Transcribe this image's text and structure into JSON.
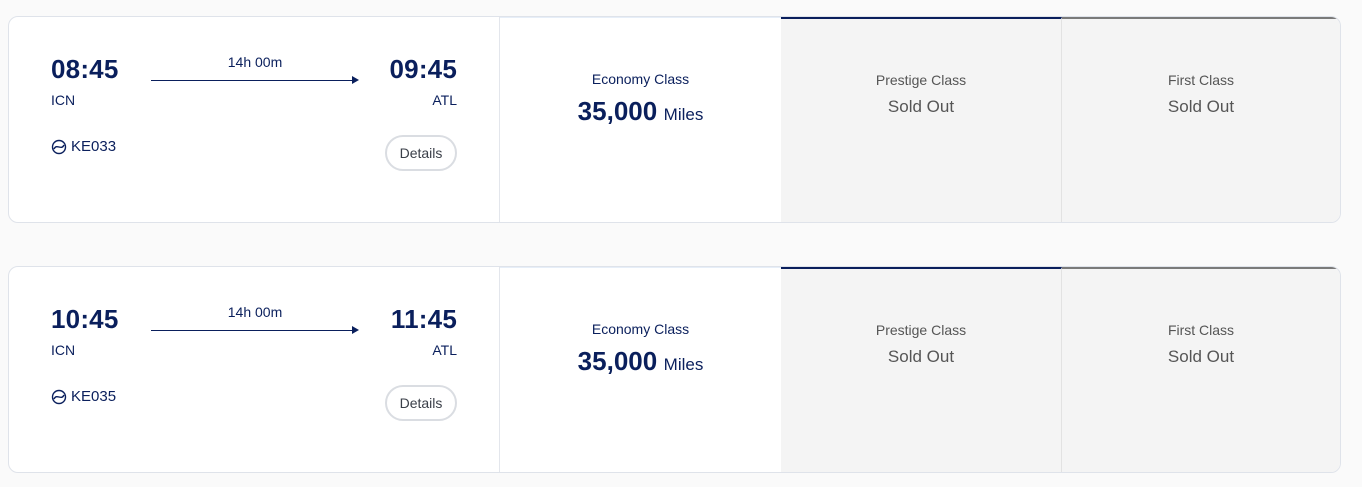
{
  "flights": [
    {
      "departure_time": "08:45",
      "departure_airport": "ICN",
      "duration": "14h 00m",
      "arrival_time": "09:45",
      "arrival_airport": "ATL",
      "flight_number": "KE033",
      "details_label": "Details",
      "fares": {
        "economy": {
          "label": "Economy Class",
          "price": "35,000",
          "unit": "Miles"
        },
        "prestige": {
          "label": "Prestige Class",
          "status": "Sold Out"
        },
        "first": {
          "label": "First Class",
          "status": "Sold Out"
        }
      }
    },
    {
      "departure_time": "10:45",
      "departure_airport": "ICN",
      "duration": "14h 00m",
      "arrival_time": "11:45",
      "arrival_airport": "ATL",
      "flight_number": "KE035",
      "details_label": "Details",
      "fares": {
        "economy": {
          "label": "Economy Class",
          "price": "35,000",
          "unit": "Miles"
        },
        "prestige": {
          "label": "Prestige Class",
          "status": "Sold Out"
        },
        "first": {
          "label": "First Class",
          "status": "Sold Out"
        }
      }
    }
  ],
  "colors": {
    "navy": "#0a1f5c",
    "soldout_bg": "#f4f4f4"
  },
  "icons": {
    "airline": "airline-logo-icon"
  }
}
